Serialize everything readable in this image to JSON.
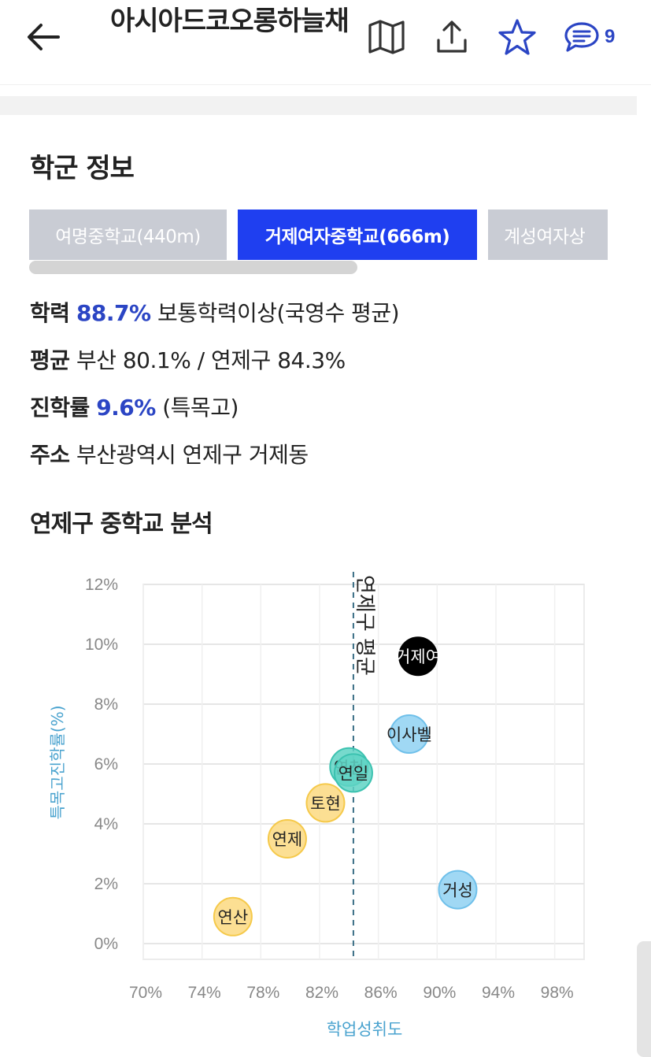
{
  "header": {
    "title": "아시아드코오롱하늘채",
    "back_icon": "arrow-left-icon",
    "map_icon": "map-icon",
    "share_icon": "share-icon",
    "star_icon": "star-icon",
    "comment_icon": "comment-icon",
    "comment_count": "9",
    "accent_color": "#2b45c4"
  },
  "school_info": {
    "title": "학군 정보",
    "tabs": [
      {
        "label": "여명중학교(440m)",
        "selected": false
      },
      {
        "label": "거제여자중학교(666m)",
        "selected": true
      },
      {
        "label": "계성여자상",
        "selected": false
      }
    ],
    "achievement": {
      "label": "학력",
      "value": "88.7%",
      "desc": "보통학력이상(국영수 평균)"
    },
    "average": {
      "label": "평균",
      "value": "부산 80.1% / 연제구 84.3%"
    },
    "advancement": {
      "label": "진학률",
      "value": "9.6%",
      "desc": "(특목고)"
    },
    "address": {
      "label": "주소",
      "value": "부산광역시 연제구 거제동"
    }
  },
  "analysis": {
    "title": "연제구 중학교 분석"
  },
  "chart_data": {
    "type": "scatter",
    "title": "",
    "xlabel": "학업성취도",
    "ylabel": "특목고진학률(%)",
    "xlim": [
      70,
      100
    ],
    "ylim": [
      0,
      12
    ],
    "x_ticks": [
      "70%",
      "74%",
      "78%",
      "82%",
      "86%",
      "90%",
      "94%",
      "98%"
    ],
    "y_ticks": [
      "0%",
      "2%",
      "4%",
      "6%",
      "8%",
      "10%",
      "12%"
    ],
    "reference_line": {
      "label": "연제구 평균",
      "x": 84.3
    },
    "points": [
      {
        "label": "거제여",
        "x": 88.7,
        "y": 9.6,
        "color": "#000000"
      },
      {
        "label": "이사벨",
        "x": 88.1,
        "y": 7.0,
        "color": "#8fd1f2"
      },
      {
        "label": "연천",
        "x": 84.0,
        "y": 5.9,
        "color": "#5fd3c4"
      },
      {
        "label": "연일",
        "x": 84.3,
        "y": 5.7,
        "color": "#5fd3c4"
      },
      {
        "label": "토현",
        "x": 82.4,
        "y": 4.7,
        "color": "#fcd980"
      },
      {
        "label": "연제",
        "x": 79.8,
        "y": 3.5,
        "color": "#fcd980"
      },
      {
        "label": "거성",
        "x": 91.4,
        "y": 1.8,
        "color": "#8fd1f2"
      },
      {
        "label": "연산",
        "x": 76.1,
        "y": 0.9,
        "color": "#fcd980"
      }
    ],
    "grid": true,
    "legend": "none"
  }
}
